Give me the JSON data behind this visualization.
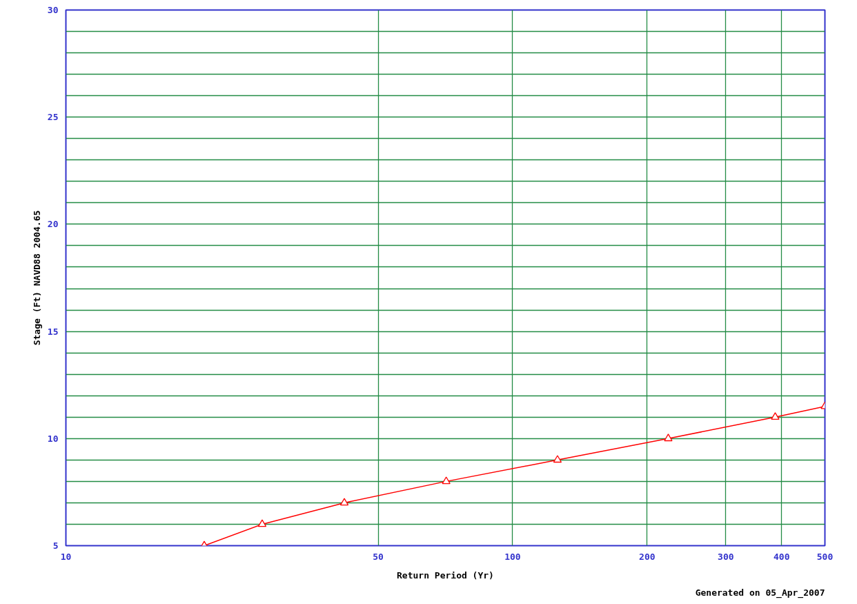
{
  "chart_data": {
    "type": "line",
    "xlabel": "Return Period (Yr)",
    "ylabel": "Stage (Ft) NAVD88 2004.65",
    "annotations": [
      "Generated on 05_Apr_2007"
    ],
    "log": "x",
    "xlim": [
      10,
      500
    ],
    "xticks": [
      10,
      50,
      100,
      200,
      300,
      400,
      500
    ],
    "ylim": [
      5,
      30
    ],
    "yticks": [
      5,
      {
        "value": 6,
        "label": null
      },
      {
        "value": 7,
        "label": null
      },
      {
        "value": 8,
        "label": null
      },
      {
        "value": 9,
        "label": null
      },
      10,
      {
        "value": 11,
        "label": null
      },
      {
        "value": 12,
        "label": null
      },
      {
        "value": 13,
        "label": null
      },
      {
        "value": 14,
        "label": null
      },
      15,
      {
        "value": 16,
        "label": null
      },
      {
        "value": 17,
        "label": null
      },
      {
        "value": 18,
        "label": null
      },
      {
        "value": 19,
        "label": null
      },
      20,
      {
        "value": 21,
        "label": null
      },
      {
        "value": 22,
        "label": null
      },
      {
        "value": 23,
        "label": null
      },
      {
        "value": 24,
        "label": null
      },
      25,
      {
        "value": 26,
        "label": null
      },
      {
        "value": 27,
        "label": null
      },
      {
        "value": 28,
        "label": null
      },
      {
        "value": 29,
        "label": null
      },
      30
    ],
    "grid": true,
    "marker": "triangle",
    "line_style": "solid",
    "series": [
      {
        "color": "#ff0000",
        "x": [
          20.4,
          27.5,
          42,
          71,
          126,
          223,
          387,
          500
        ],
        "values": [
          5,
          6,
          7,
          8,
          9,
          10,
          11,
          11.5
        ]
      }
    ]
  }
}
